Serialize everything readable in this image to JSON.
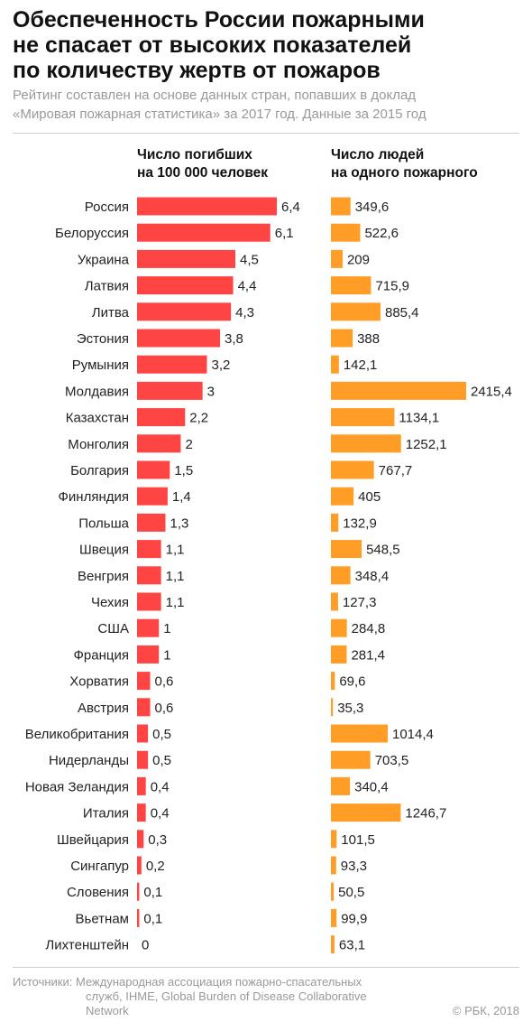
{
  "title_lines": [
    "Обеспеченность России пожарными",
    "не спасает от высоких показателей",
    "по количеству жертв от пожаров"
  ],
  "subtitle_lines": [
    "Рейтинг составлен на основе данных стран, попавших в доклад",
    "«Мировая пожарная статистика» за 2017 год. Данные за 2015 год"
  ],
  "colors": {
    "deaths": "#ff4444",
    "firefighters": "#ff9d26"
  },
  "chart_data": {
    "type": "bar",
    "orientation": "horizontal",
    "categories": [
      "Россия",
      "Белоруссия",
      "Украина",
      "Латвия",
      "Литва",
      "Эстония",
      "Румыния",
      "Молдавия",
      "Казахстан",
      "Монголия",
      "Болгария",
      "Финляндия",
      "Польша",
      "Швеция",
      "Венгрия",
      "Чехия",
      "США",
      "Франция",
      "Хорватия",
      "Австрия",
      "Великобритания",
      "Нидерланды",
      "Новая Зеландия",
      "Италия",
      "Швейцария",
      "Сингапур",
      "Словения",
      "Вьетнам",
      "Лихтенштейн"
    ],
    "series": [
      {
        "name_lines": [
          "Число погибших",
          "на 100 000 человек"
        ],
        "values": [
          6.4,
          6.1,
          4.5,
          4.4,
          4.3,
          3.8,
          3.2,
          3,
          2.2,
          2,
          1.5,
          1.4,
          1.3,
          1.1,
          1.1,
          1.1,
          1,
          1,
          0.6,
          0.6,
          0.5,
          0.5,
          0.4,
          0.4,
          0.3,
          0.2,
          0.1,
          0.1,
          0
        ],
        "labels": [
          "6,4",
          "6,1",
          "4,5",
          "4,4",
          "4,3",
          "3,8",
          "3,2",
          "3",
          "2,2",
          "2",
          "1,5",
          "1,4",
          "1,3",
          "1,1",
          "1,1",
          "1,1",
          "1",
          "1",
          "0,6",
          "0,6",
          "0,5",
          "0,5",
          "0,4",
          "0,4",
          "0,3",
          "0,2",
          "0,1",
          "0,1",
          "0"
        ]
      },
      {
        "name_lines": [
          "Число людей",
          "на одного пожарного"
        ],
        "values": [
          349.6,
          522.6,
          209,
          715.9,
          885.4,
          388,
          142.1,
          2415.4,
          1134.1,
          1252.1,
          767.7,
          405,
          132.9,
          548.5,
          348.4,
          127.3,
          284.8,
          281.4,
          69.6,
          35.3,
          1014.4,
          703.5,
          340.4,
          1246.7,
          101.5,
          93.3,
          50.5,
          99.9,
          63.1
        ],
        "labels": [
          "349,6",
          "522,6",
          "209",
          "715,9",
          "885,4",
          "388",
          "142,1",
          "2415,4",
          "1134,1",
          "1252,1",
          "767,7",
          "405",
          "132,9",
          "548,5",
          "348,4",
          "127,3",
          "284,8",
          "281,4",
          "69,6",
          "35,3",
          "1014,4",
          "703,5",
          "340,4",
          "1246,7",
          "101,5",
          "93,3",
          "50,5",
          "99,9",
          "63,1"
        ]
      }
    ],
    "xlim_left": [
      0,
      6.4
    ],
    "xlim_right": [
      0,
      2415.4
    ]
  },
  "footer_lines": [
    "Источники: Международная ассоциация пожарно-спасательных",
    "служб, IHME, Global Burden of Disease Collaborative",
    "Network"
  ],
  "copyright": "© РБК, 2018"
}
